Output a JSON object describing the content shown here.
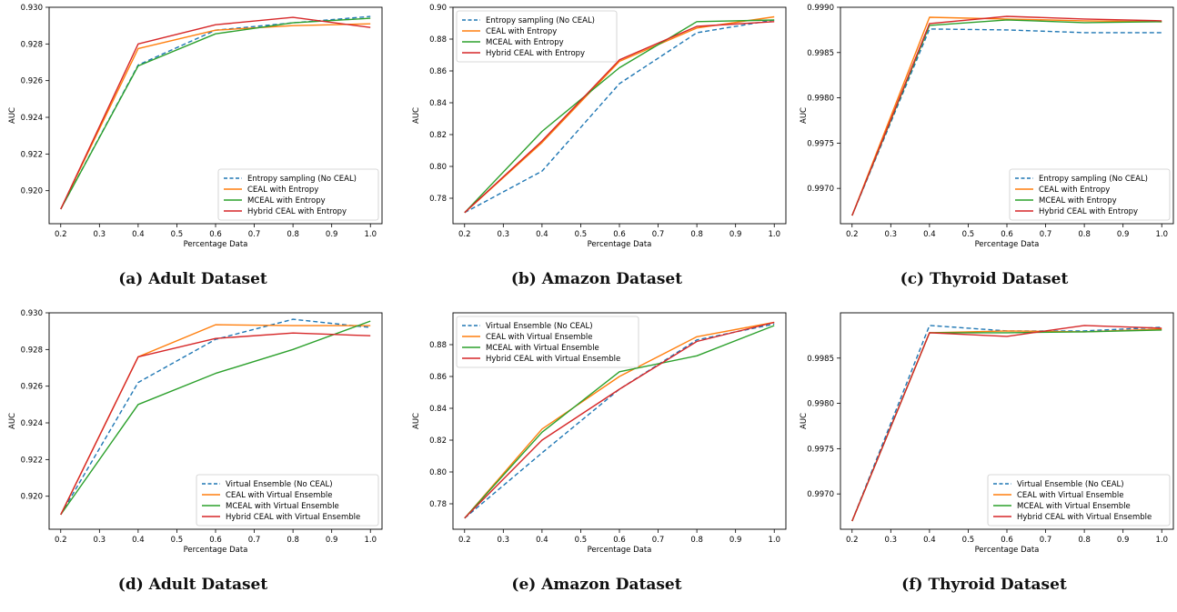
{
  "chart_data": [
    {
      "type": "line",
      "caption": "(a) Adult Dataset",
      "xlabel": "Percentage Data",
      "ylabel": "AUC",
      "xlim": [
        0.17,
        1.03
      ],
      "ylim": [
        0.9182,
        0.93
      ],
      "yticks": [
        0.92,
        0.922,
        0.924,
        0.926,
        0.928,
        0.93
      ],
      "ytick_labels": [
        "0.920",
        "0.922",
        "0.924",
        "0.926",
        "0.928",
        "0.930"
      ],
      "xticks": [
        0.2,
        0.3,
        0.4,
        0.5,
        0.6,
        0.7,
        0.8,
        0.9,
        1.0
      ],
      "xtick_labels": [
        "0.2",
        "0.3",
        "0.4",
        "0.5",
        "0.6",
        "0.7",
        "0.8",
        "0.9",
        "1.0"
      ],
      "legend_position": "lower-right",
      "x": [
        0.2,
        0.4,
        0.6,
        0.8,
        1.0
      ],
      "series": [
        {
          "name": "Entropy sampling (No CEAL)",
          "color": "#1f77b4",
          "dashed": true,
          "values": [
            0.919,
            0.92685,
            0.92875,
            0.92915,
            0.9295
          ]
        },
        {
          "name": "CEAL with Entropy",
          "color": "#ff7f0e",
          "dashed": false,
          "values": [
            0.919,
            0.92775,
            0.92875,
            0.929,
            0.9291
          ]
        },
        {
          "name": "MCEAL with Entropy",
          "color": "#2ca02c",
          "dashed": false,
          "values": [
            0.919,
            0.9268,
            0.92855,
            0.92915,
            0.9294
          ]
        },
        {
          "name": "Hybrid CEAL with Entropy",
          "color": "#d62728",
          "dashed": false,
          "values": [
            0.919,
            0.928,
            0.92905,
            0.92945,
            0.9289
          ]
        }
      ]
    },
    {
      "type": "line",
      "caption": "(b) Amazon Dataset",
      "xlabel": "Percentage Data",
      "ylabel": "AUC",
      "xlim": [
        0.17,
        1.03
      ],
      "ylim": [
        0.764,
        0.9
      ],
      "yticks": [
        0.78,
        0.8,
        0.82,
        0.84,
        0.86,
        0.88,
        0.9
      ],
      "ytick_labels": [
        "0.78",
        "0.80",
        "0.82",
        "0.84",
        "0.86",
        "0.88",
        "0.90"
      ],
      "xticks": [
        0.2,
        0.3,
        0.4,
        0.5,
        0.6,
        0.7,
        0.8,
        0.9,
        1.0
      ],
      "xtick_labels": [
        "0.2",
        "0.3",
        "0.4",
        "0.5",
        "0.6",
        "0.7",
        "0.8",
        "0.9",
        "1.0"
      ],
      "legend_position": "upper-left",
      "x": [
        0.2,
        0.4,
        0.6,
        0.8,
        1.0
      ],
      "series": [
        {
          "name": "Entropy sampling (No CEAL)",
          "color": "#1f77b4",
          "dashed": true,
          "values": [
            0.771,
            0.797,
            0.852,
            0.884,
            0.892
          ]
        },
        {
          "name": "CEAL with Entropy",
          "color": "#ff7f0e",
          "dashed": false,
          "values": [
            0.771,
            0.815,
            0.866,
            0.887,
            0.894
          ]
        },
        {
          "name": "MCEAL with Entropy",
          "color": "#2ca02c",
          "dashed": false,
          "values": [
            0.771,
            0.822,
            0.862,
            0.891,
            0.892
          ]
        },
        {
          "name": "Hybrid CEAL with Entropy",
          "color": "#d62728",
          "dashed": false,
          "values": [
            0.771,
            0.816,
            0.867,
            0.888,
            0.891
          ]
        }
      ]
    },
    {
      "type": "line",
      "caption": "(c) Thyroid Dataset",
      "xlabel": "Percentage Data",
      "ylabel": "AUC",
      "xlim": [
        0.17,
        1.03
      ],
      "ylim": [
        0.99661,
        0.999
      ],
      "yticks": [
        0.997,
        0.9975,
        0.998,
        0.9985,
        0.999
      ],
      "ytick_labels": [
        "0.9970",
        "0.9975",
        "0.9980",
        "0.9985",
        "0.9990"
      ],
      "xticks": [
        0.2,
        0.3,
        0.4,
        0.5,
        0.6,
        0.7,
        0.8,
        0.9,
        1.0
      ],
      "xtick_labels": [
        "0.2",
        "0.3",
        "0.4",
        "0.5",
        "0.6",
        "0.7",
        "0.8",
        "0.9",
        "1.0"
      ],
      "legend_position": "lower-right",
      "x": [
        0.2,
        0.4,
        0.6,
        0.8,
        1.0
      ],
      "series": [
        {
          "name": "Entropy sampling (No CEAL)",
          "color": "#1f77b4",
          "dashed": true,
          "values": [
            0.9967,
            0.99876,
            0.99875,
            0.99872,
            0.99872
          ]
        },
        {
          "name": "CEAL with Entropy",
          "color": "#ff7f0e",
          "dashed": false,
          "values": [
            0.9967,
            0.99889,
            0.99887,
            0.99885,
            0.99884
          ]
        },
        {
          "name": "MCEAL with Entropy",
          "color": "#2ca02c",
          "dashed": false,
          "values": [
            0.9967,
            0.9988,
            0.99886,
            0.99883,
            0.99884
          ]
        },
        {
          "name": "Hybrid CEAL with Entropy",
          "color": "#d62728",
          "dashed": false,
          "values": [
            0.9967,
            0.99882,
            0.9989,
            0.99887,
            0.99885
          ]
        }
      ]
    },
    {
      "type": "line",
      "caption": "(d) Adult Dataset",
      "xlabel": "Percentage Data",
      "ylabel": "AUC",
      "xlim": [
        0.17,
        1.03
      ],
      "ylim": [
        0.9182,
        0.93
      ],
      "yticks": [
        0.92,
        0.922,
        0.924,
        0.926,
        0.928,
        0.93
      ],
      "ytick_labels": [
        "0.920",
        "0.922",
        "0.924",
        "0.926",
        "0.928",
        "0.930"
      ],
      "xticks": [
        0.2,
        0.3,
        0.4,
        0.5,
        0.6,
        0.7,
        0.8,
        0.9,
        1.0
      ],
      "xtick_labels": [
        "0.2",
        "0.3",
        "0.4",
        "0.5",
        "0.6",
        "0.7",
        "0.8",
        "0.9",
        "1.0"
      ],
      "legend_position": "lower-right",
      "x": [
        0.2,
        0.4,
        0.6,
        0.8,
        1.0
      ],
      "series": [
        {
          "name": "Virtual Ensemble (No CEAL)",
          "color": "#1f77b4",
          "dashed": true,
          "values": [
            0.919,
            0.9262,
            0.92855,
            0.92965,
            0.9292
          ]
        },
        {
          "name": "CEAL with Virtual Ensemble",
          "color": "#ff7f0e",
          "dashed": false,
          "values": [
            0.919,
            0.9276,
            0.92935,
            0.9293,
            0.9293
          ]
        },
        {
          "name": "MCEAL with Virtual Ensemble",
          "color": "#2ca02c",
          "dashed": false,
          "values": [
            0.919,
            0.925,
            0.9267,
            0.928,
            0.92955
          ]
        },
        {
          "name": "Hybrid CEAL with Virtual Ensemble",
          "color": "#d62728",
          "dashed": false,
          "values": [
            0.919,
            0.9276,
            0.9286,
            0.9289,
            0.92875
          ]
        }
      ]
    },
    {
      "type": "line",
      "caption": "(e) Amazon Dataset",
      "xlabel": "Percentage Data",
      "ylabel": "AUC",
      "xlim": [
        0.17,
        1.03
      ],
      "ylim": [
        0.764,
        0.9
      ],
      "yticks": [
        0.78,
        0.8,
        0.82,
        0.84,
        0.86,
        0.88
      ],
      "ytick_labels": [
        "0.78",
        "0.80",
        "0.82",
        "0.84",
        "0.86",
        "0.88"
      ],
      "xticks": [
        0.2,
        0.3,
        0.4,
        0.5,
        0.6,
        0.7,
        0.8,
        0.9,
        1.0
      ],
      "xtick_labels": [
        "0.2",
        "0.3",
        "0.4",
        "0.5",
        "0.6",
        "0.7",
        "0.8",
        "0.9",
        "1.0"
      ],
      "legend_position": "upper-left",
      "x": [
        0.2,
        0.4,
        0.6,
        0.8,
        1.0
      ],
      "series": [
        {
          "name": "Virtual Ensemble (No CEAL)",
          "color": "#1f77b4",
          "dashed": true,
          "values": [
            0.771,
            0.812,
            0.852,
            0.883,
            0.893
          ]
        },
        {
          "name": "CEAL with Virtual Ensemble",
          "color": "#ff7f0e",
          "dashed": false,
          "values": [
            0.771,
            0.827,
            0.86,
            0.885,
            0.894
          ]
        },
        {
          "name": "MCEAL with Virtual Ensemble",
          "color": "#2ca02c",
          "dashed": false,
          "values": [
            0.771,
            0.825,
            0.863,
            0.873,
            0.892
          ]
        },
        {
          "name": "Hybrid CEAL with Virtual Ensemble",
          "color": "#d62728",
          "dashed": false,
          "values": [
            0.771,
            0.82,
            0.852,
            0.882,
            0.894
          ]
        }
      ]
    },
    {
      "type": "line",
      "caption": "(f) Thyroid Dataset",
      "xlabel": "Percentage Data",
      "ylabel": "AUC",
      "xlim": [
        0.17,
        1.03
      ],
      "ylim": [
        0.99661,
        0.999
      ],
      "yticks": [
        0.997,
        0.9975,
        0.998,
        0.9985
      ],
      "ytick_labels": [
        "0.9970",
        "0.9975",
        "0.9980",
        "0.9985"
      ],
      "xticks": [
        0.2,
        0.3,
        0.4,
        0.5,
        0.6,
        0.7,
        0.8,
        0.9,
        1.0
      ],
      "xtick_labels": [
        "0.2",
        "0.3",
        "0.4",
        "0.5",
        "0.6",
        "0.7",
        "0.8",
        "0.9",
        "1.0"
      ],
      "legend_position": "lower-right",
      "x": [
        0.2,
        0.4,
        0.6,
        0.8,
        1.0
      ],
      "series": [
        {
          "name": "Virtual Ensemble (No CEAL)",
          "color": "#1f77b4",
          "dashed": true,
          "values": [
            0.9967,
            0.99886,
            0.9988,
            0.9988,
            0.99884
          ]
        },
        {
          "name": "CEAL with Virtual Ensemble",
          "color": "#ff7f0e",
          "dashed": false,
          "values": [
            0.9967,
            0.99878,
            0.9988,
            0.99879,
            0.99882
          ]
        },
        {
          "name": "MCEAL with Virtual Ensemble",
          "color": "#2ca02c",
          "dashed": false,
          "values": [
            0.9967,
            0.99878,
            0.99878,
            0.99879,
            0.99881
          ]
        },
        {
          "name": "Hybrid CEAL with Virtual Ensemble",
          "color": "#d62728",
          "dashed": false,
          "values": [
            0.9967,
            0.99878,
            0.99874,
            0.99886,
            0.99883
          ]
        }
      ]
    }
  ]
}
